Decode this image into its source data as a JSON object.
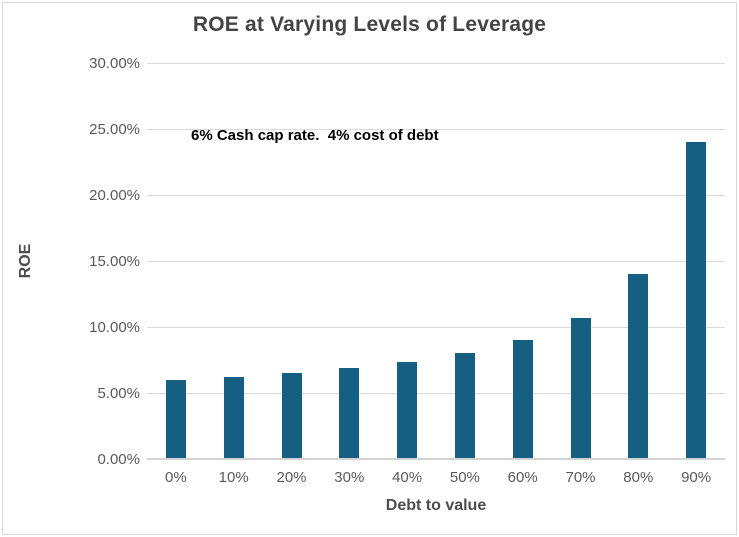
{
  "title": "ROE at Varying Levels of Leverage",
  "annotation": "6% Cash cap rate.  4% cost of debt",
  "colors": {
    "bar": "#156082",
    "title_text": "#444444",
    "axis_text": "#595959",
    "gridline": "#d9d9d9",
    "frame_border": "#d9d9d9",
    "annotation_text": "#000000",
    "background": "#ffffff"
  },
  "chart_data": {
    "type": "bar",
    "title": "ROE at Varying Levels of Leverage",
    "xlabel": "Debt to value",
    "ylabel": "ROE",
    "categories": [
      "0%",
      "10%",
      "20%",
      "30%",
      "40%",
      "50%",
      "60%",
      "70%",
      "80%",
      "90%"
    ],
    "values": [
      6.0,
      6.22,
      6.5,
      6.86,
      7.33,
      8.0,
      9.0,
      10.67,
      14.0,
      24.0
    ],
    "value_unit": "percent",
    "ylim": [
      0,
      30
    ],
    "ytick_step": 5,
    "ytick_labels": [
      "0.00%",
      "5.00%",
      "10.00%",
      "15.00%",
      "20.00%",
      "25.00%",
      "30.00%"
    ],
    "grid": true,
    "legend": "none",
    "annotation": "6% Cash cap rate.  4% cost of debt"
  }
}
